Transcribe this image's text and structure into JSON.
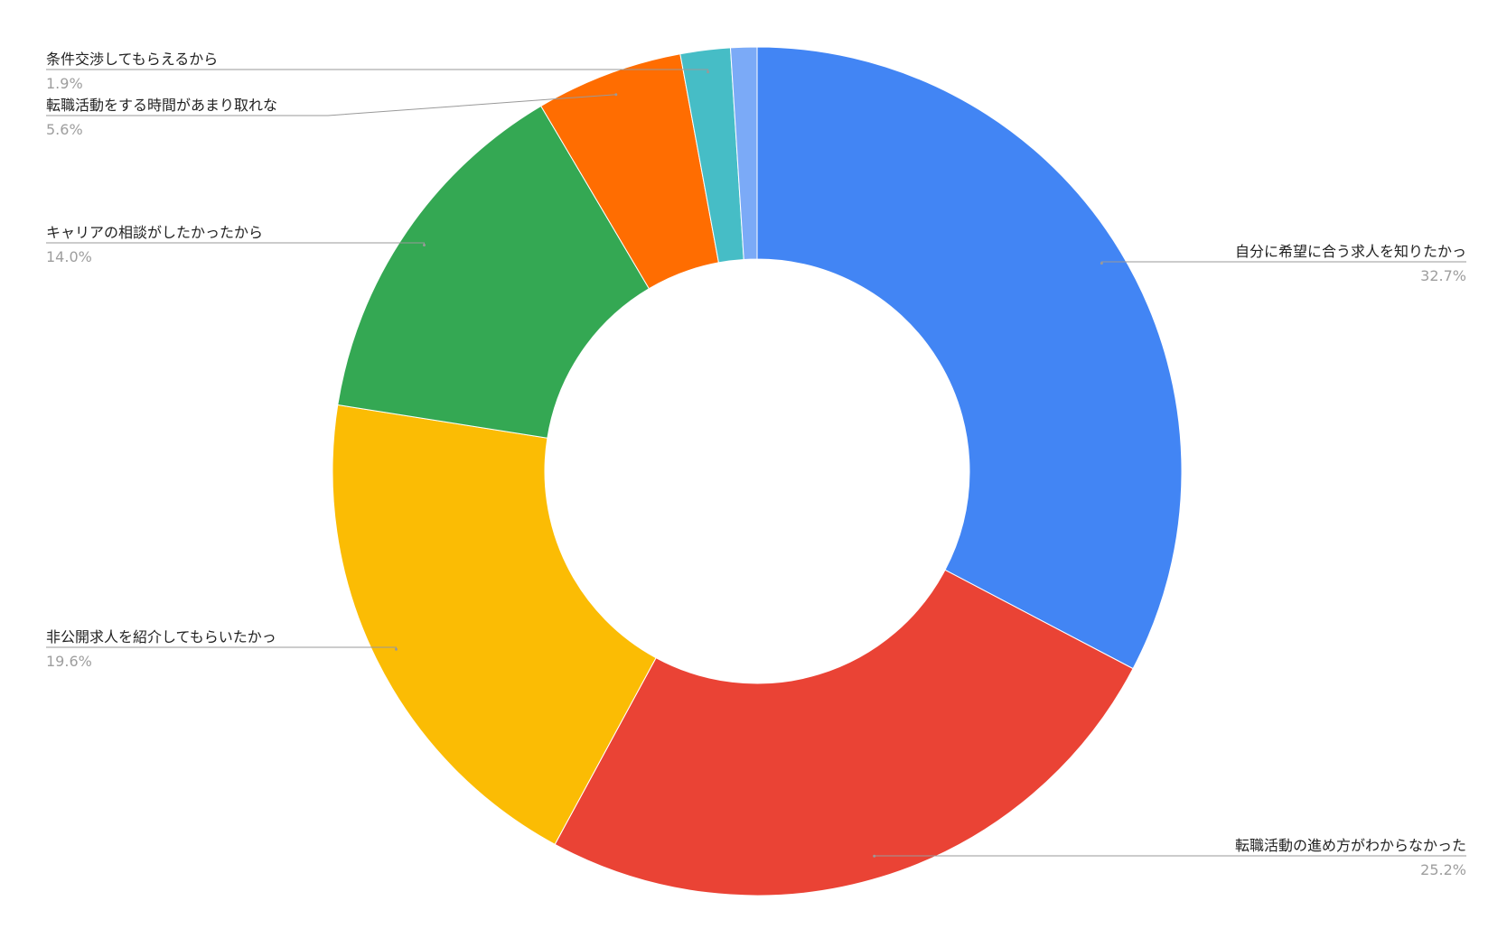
{
  "chart_data": {
    "type": "donut",
    "categories": [
      "自分に希望に合う求人を知りたかっ",
      "転職活動の進め方がわからなかった",
      "非公開求人を紹介してもらいたかっ",
      "キャリアの相談がしたかったから",
      "転職活動をする時間があまり取れな",
      "条件交渉してもらえるから",
      null
    ],
    "values": [
      32.7,
      25.2,
      19.6,
      14.0,
      5.6,
      1.9,
      1.0
    ],
    "value_labels": [
      "32.7%",
      "25.2%",
      "19.6%",
      "14.0%",
      "5.6%",
      "1.9%",
      null
    ],
    "colors": [
      "#4285f4",
      "#ea4335",
      "#fbbc04",
      "#34a853",
      "#ff6d01",
      "#46bdc6",
      "#7baaf7"
    ]
  }
}
